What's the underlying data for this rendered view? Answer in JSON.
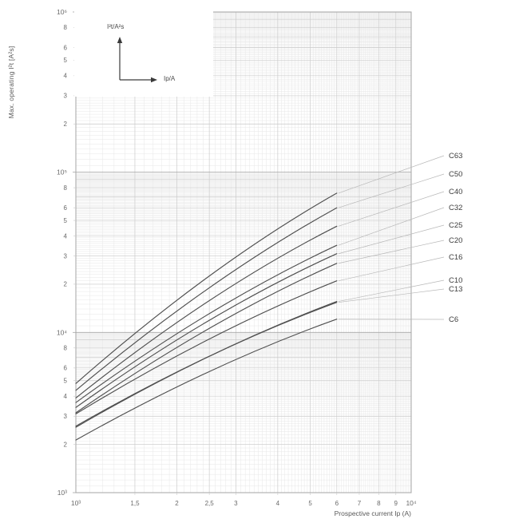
{
  "axes": {
    "y": {
      "title": "Max. operating I²t [A²s]",
      "decades": [
        "10⁶",
        "10⁵",
        "10⁴",
        "10³"
      ],
      "decade_exponents": [
        6,
        5,
        4,
        3
      ],
      "minor_labels": [
        "8",
        "6",
        "5",
        "4",
        "3",
        "2"
      ],
      "minor_values": [
        8,
        6,
        5,
        4,
        3,
        2
      ],
      "range": [
        1000,
        1000000
      ],
      "scale": "log"
    },
    "x": {
      "title": "Prospective current Ip (A)",
      "start_label": "10³",
      "end_label": "10⁴",
      "tick_labels": [
        "1,5",
        "2",
        "2,5",
        "3",
        "4",
        "5",
        "6",
        "7",
        "8",
        "9"
      ],
      "tick_values": [
        1.5,
        2,
        2.5,
        3,
        4,
        5,
        6,
        7,
        8,
        9
      ],
      "range": [
        1000,
        10000
      ],
      "scale": "log"
    }
  },
  "inset": {
    "y_label": "I²t/A²s",
    "x_label": "Ip/A"
  },
  "chart_data": {
    "type": "line",
    "x_scale": "log",
    "y_scale": "log",
    "xlabel": "Prospective current Ip (A)",
    "ylabel": "Max. operating I²t [A²s]",
    "xlim": [
      1000,
      10000
    ],
    "ylim": [
      1000,
      1000000
    ],
    "grid": "log-log minor grid on",
    "curves_end_at_x": 6000,
    "series": [
      {
        "name": "C63",
        "points": [
          [
            1000,
            4800
          ],
          [
            2500,
            22500
          ],
          [
            6000,
            74000
          ]
        ]
      },
      {
        "name": "C50",
        "points": [
          [
            1000,
            4350
          ],
          [
            2500,
            19000
          ],
          [
            6000,
            60000
          ]
        ]
      },
      {
        "name": "C40",
        "points": [
          [
            1000,
            3900
          ],
          [
            2500,
            15800
          ],
          [
            6000,
            46000
          ]
        ]
      },
      {
        "name": "C32",
        "points": [
          [
            1000,
            3650
          ],
          [
            2500,
            13100
          ],
          [
            6000,
            35000
          ]
        ]
      },
      {
        "name": "C25",
        "points": [
          [
            1000,
            3400
          ],
          [
            2500,
            11900
          ],
          [
            6000,
            31000
          ]
        ]
      },
      {
        "name": "C20",
        "points": [
          [
            1000,
            3150
          ],
          [
            2500,
            10600
          ],
          [
            6000,
            27000
          ]
        ]
      },
      {
        "name": "C16",
        "points": [
          [
            1000,
            3100
          ],
          [
            2500,
            9100
          ],
          [
            6000,
            21000
          ]
        ]
      },
      {
        "name": "C10",
        "points": [
          [
            1000,
            2560
          ],
          [
            2500,
            7100
          ],
          [
            6000,
            15600
          ]
        ]
      },
      {
        "name": "C13",
        "points": [
          [
            1000,
            2600
          ],
          [
            2500,
            7100
          ],
          [
            6000,
            15400
          ]
        ]
      },
      {
        "name": "C6",
        "points": [
          [
            1000,
            2130
          ],
          [
            2500,
            5700
          ],
          [
            6000,
            12100
          ]
        ]
      }
    ],
    "legend_position": "labels right of plot with leader lines"
  },
  "colors": {
    "curve": "#4f4f4f",
    "leader": "#b8b8b8",
    "grid_minor": "#e7e7e7",
    "grid_mid": "#c8c8c8",
    "grid_major": "#a5a5a5",
    "tick_text": "#6a6a6a",
    "label_text": "#3d3d3d",
    "background": "#ffffff"
  }
}
